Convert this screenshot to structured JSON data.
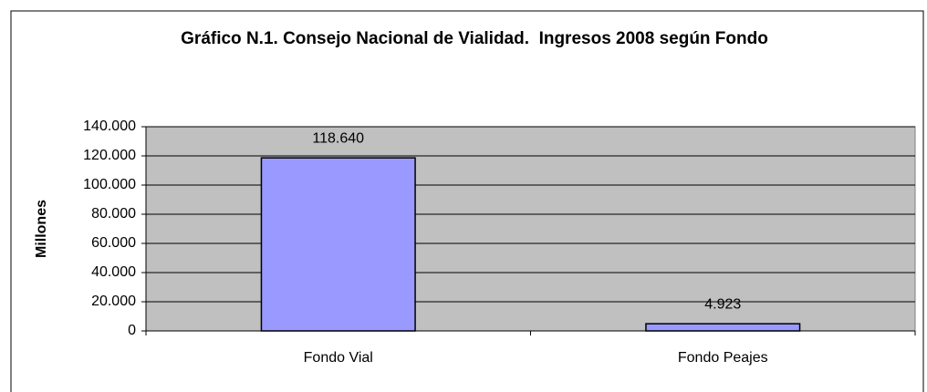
{
  "chart_data": {
    "type": "bar",
    "title": "Gráfico N.1. Consejo Nacional de Vialidad.  Ingresos 2008 según Fondo",
    "ylabel": "Millones",
    "categories": [
      "Fondo Vial",
      "Fondo Peajes"
    ],
    "values": [
      118640,
      4923
    ],
    "value_labels": [
      "118.640",
      "4.923"
    ],
    "color": "#9999ff",
    "ylim": [
      0,
      140000
    ],
    "yticks": [
      0,
      {
        "value": 20000,
        "label": "20.000"
      },
      {
        "value": 40000,
        "label": "40.000"
      },
      {
        "value": 60000,
        "label": "60.000"
      },
      {
        "value": 80000,
        "label": "80.000"
      },
      {
        "value": 100000,
        "label": "100.000"
      },
      {
        "value": 120000,
        "label": "120.000"
      },
      {
        "value": 140000,
        "label": "140.000"
      }
    ],
    "grid": true
  }
}
